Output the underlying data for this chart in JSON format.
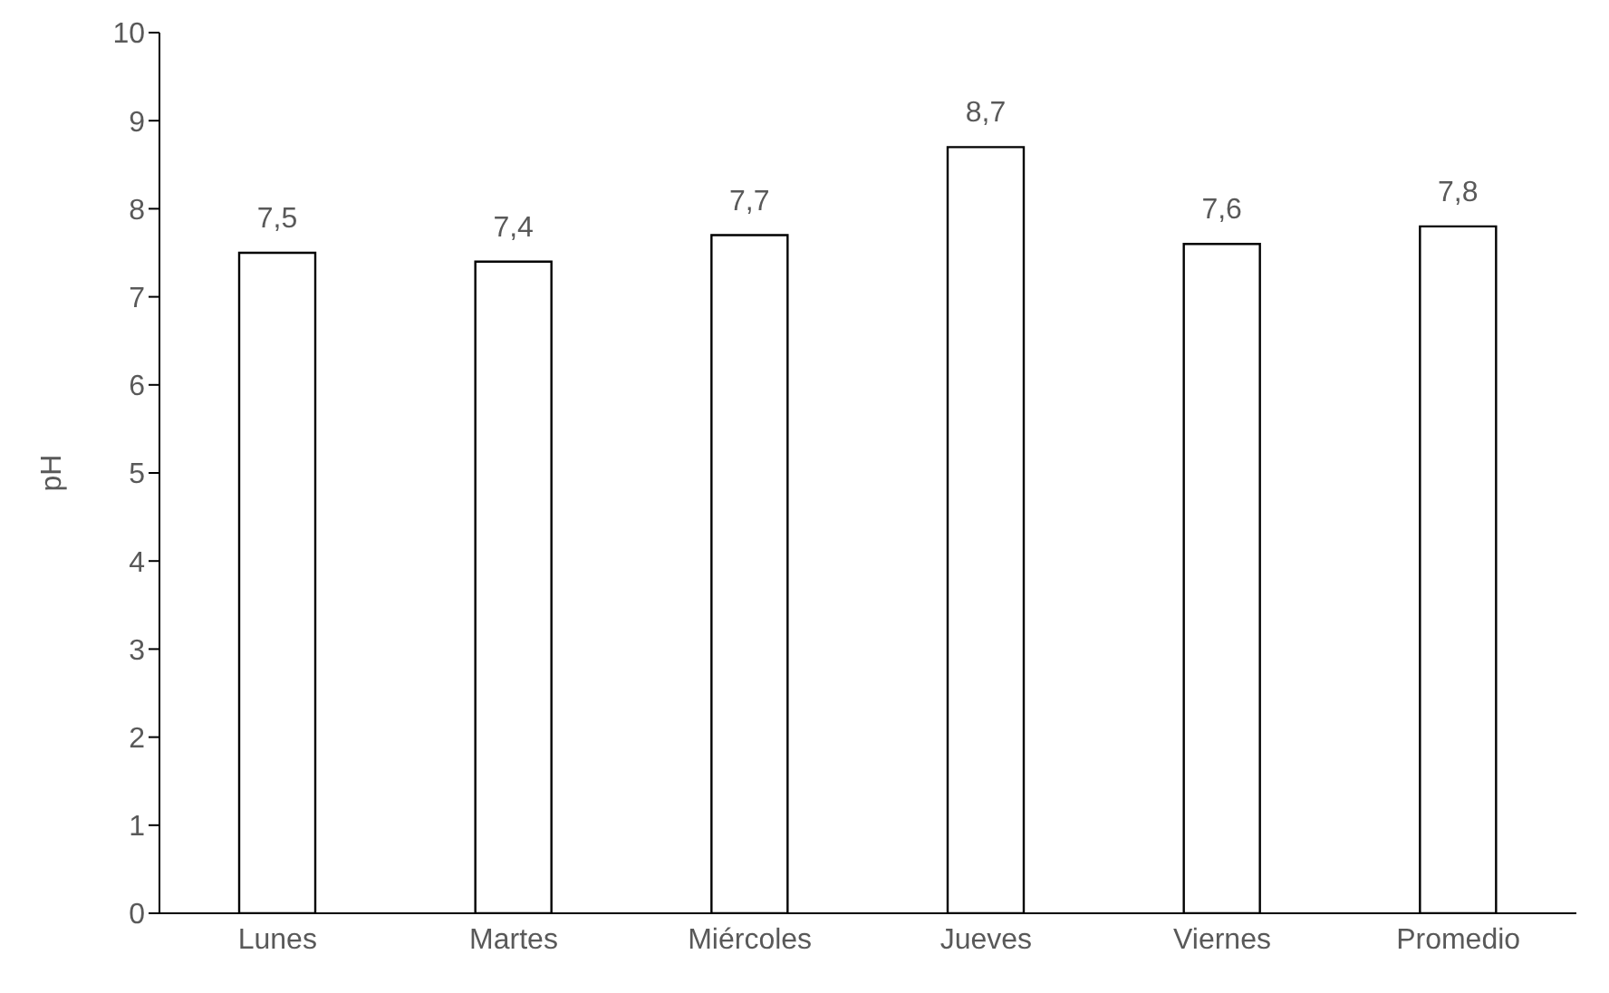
{
  "chart_data": {
    "type": "bar",
    "ylabel": "pH",
    "categories": [
      "Lunes",
      "Martes",
      "Miércoles",
      "Jueves",
      "Viernes",
      "Promedio"
    ],
    "values": [
      7.5,
      7.4,
      7.7,
      8.7,
      7.6,
      7.8
    ],
    "value_labels": [
      "7,5",
      "7,4",
      "7,7",
      "8,7",
      "7,6",
      "7,8"
    ],
    "color": "#ffffff",
    "ylim": [
      0,
      10
    ],
    "yticks": [
      0,
      1,
      2,
      3,
      4,
      5,
      6,
      7,
      8,
      9,
      10
    ],
    "grid": false,
    "legend": false
  }
}
